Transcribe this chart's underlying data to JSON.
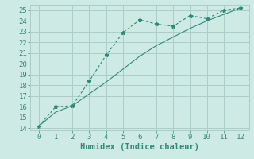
{
  "line1_x": [
    0,
    1,
    2,
    3,
    4,
    5,
    6,
    7,
    8,
    9,
    10,
    11,
    12
  ],
  "line1_y": [
    14.2,
    16.0,
    16.1,
    18.4,
    20.8,
    22.9,
    24.1,
    23.7,
    23.5,
    24.5,
    24.2,
    25.0,
    25.2
  ],
  "line2_x": [
    0,
    1,
    2,
    3,
    4,
    5,
    6,
    7,
    8,
    9,
    10,
    11,
    12
  ],
  "line2_y": [
    14.2,
    15.5,
    16.1,
    17.2,
    18.3,
    19.5,
    20.7,
    21.7,
    22.5,
    23.3,
    24.0,
    24.6,
    25.2
  ],
  "line_color": "#2e8b7a",
  "background_color": "#ceeae4",
  "grid_color": "#aacfc8",
  "xlabel": "Humidex (Indice chaleur)",
  "ylim": [
    13.8,
    25.5
  ],
  "xlim": [
    -0.5,
    12.5
  ],
  "yticks": [
    14,
    15,
    16,
    17,
    18,
    19,
    20,
    21,
    22,
    23,
    24,
    25
  ],
  "xticks": [
    0,
    1,
    2,
    3,
    4,
    5,
    6,
    7,
    8,
    9,
    10,
    11,
    12
  ],
  "xlabel_fontsize": 7.5,
  "tick_fontsize": 6.5
}
